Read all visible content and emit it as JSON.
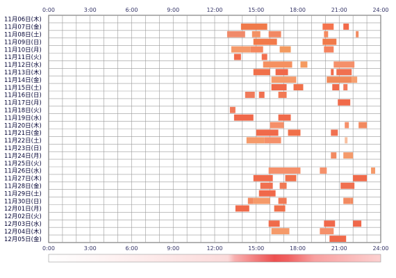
{
  "chart_data": {
    "type": "heatmap",
    "x_ticks": [
      "0:00",
      "3:00",
      "6:00",
      "9:00",
      "12:00",
      "15:00",
      "18:00",
      "21:00",
      "24:00"
    ],
    "xlim": [
      0,
      24
    ],
    "grid": true,
    "rows": [
      {
        "label": "11月06日(木)",
        "segments": []
      },
      {
        "label": "11月07日(金)",
        "segments": [
          [
            13.9,
            15.8,
            "#f07a4a"
          ],
          [
            19.8,
            20.6,
            "#f5744e"
          ],
          [
            21.3,
            21.7,
            "#f26a4a"
          ]
        ]
      },
      {
        "label": "11月08日(土)",
        "segments": [
          [
            12.9,
            14.2,
            "#f08a6a"
          ],
          [
            14.7,
            15.3,
            "#f39265"
          ],
          [
            15.9,
            16.8,
            "#f28863"
          ],
          [
            19.9,
            20.2,
            "#f58a60"
          ],
          [
            22.2,
            22.4,
            "#f28a60"
          ]
        ]
      },
      {
        "label": "11月09日(日)",
        "segments": [
          [
            14.8,
            16.5,
            "#f27a4a"
          ],
          [
            19.8,
            20.8,
            "#f07a4a"
          ]
        ]
      },
      {
        "label": "11月10日(月)",
        "segments": [
          [
            13.2,
            14.6,
            "#f59a6a"
          ],
          [
            14.6,
            15.5,
            "#f5875e"
          ],
          [
            16.7,
            17.5,
            "#f39a5f"
          ],
          [
            19.9,
            20.6,
            "#f5825e"
          ]
        ]
      },
      {
        "label": "11月11日(火)",
        "segments": [
          [
            13.4,
            13.9,
            "#f06a4a"
          ],
          [
            15.4,
            15.8,
            "#f27050"
          ]
        ]
      },
      {
        "label": "11月12日(水)",
        "segments": [
          [
            15.5,
            17.6,
            "#f59060"
          ],
          [
            18.2,
            18.7,
            "#f59a60"
          ],
          [
            20.6,
            22.1,
            "#f5906a"
          ]
        ]
      },
      {
        "label": "11月13日(木)",
        "segments": [
          [
            14.8,
            16.0,
            "#f0704a"
          ],
          [
            16.4,
            17.3,
            "#f0684a"
          ],
          [
            20.4,
            20.6,
            "#f06a4a"
          ],
          [
            20.8,
            21.9,
            "#f07050"
          ]
        ]
      },
      {
        "label": "11月14日(金)",
        "segments": [
          [
            16.1,
            17.9,
            "#f59a6a"
          ],
          [
            20.1,
            21.9,
            "#f08a5a"
          ],
          [
            21.9,
            22.3,
            "#f5a070"
          ]
        ]
      },
      {
        "label": "11月15日(土)",
        "segments": [
          [
            16.1,
            17.2,
            "#f06a4a"
          ],
          [
            17.7,
            18.4,
            "#f0704a"
          ],
          [
            20.5,
            21.0,
            "#f06a4a"
          ],
          [
            21.3,
            21.6,
            "#f27a5a"
          ]
        ]
      },
      {
        "label": "11月16日(日)",
        "segments": [
          [
            14.2,
            14.9,
            "#f07a5a"
          ],
          [
            15.2,
            15.6,
            "#f07050"
          ],
          [
            16.6,
            17.2,
            "#f27a55"
          ]
        ]
      },
      {
        "label": "11月17日(月)",
        "segments": [
          [
            20.9,
            21.8,
            "#f06a4a"
          ]
        ]
      },
      {
        "label": "11月18日(火)",
        "segments": [
          [
            13.1,
            13.5,
            "#f07a5a"
          ]
        ]
      },
      {
        "label": "11月19日(水)",
        "segments": [
          [
            13.4,
            14.8,
            "#f0684a"
          ],
          [
            16.6,
            17.5,
            "#f06a4a"
          ]
        ]
      },
      {
        "label": "11月20日(木)",
        "segments": [
          [
            16.0,
            17.0,
            "#f5906a"
          ],
          [
            21.4,
            21.7,
            "#f5906a"
          ],
          [
            22.4,
            23.0,
            "#f28a60"
          ]
        ]
      },
      {
        "label": "11月21日(金)",
        "segments": [
          [
            15.0,
            16.6,
            "#f06a4a"
          ],
          [
            17.3,
            18.2,
            "#f0704a"
          ],
          [
            20.4,
            20.9,
            "#f07050"
          ]
        ]
      },
      {
        "label": "11月22日(土)",
        "segments": [
          [
            14.3,
            15.6,
            "#f59a6a"
          ],
          [
            15.6,
            16.8,
            "#f5906a"
          ],
          [
            21.4,
            21.6,
            "#f8c0a0"
          ]
        ]
      },
      {
        "label": "11月23日(日)",
        "segments": []
      },
      {
        "label": "11月24日(月)",
        "segments": [
          [
            20.4,
            20.8,
            "#f28a60"
          ],
          [
            21.3,
            22.0,
            "#f59a6a"
          ]
        ]
      },
      {
        "label": "11月25日(火)",
        "segments": []
      },
      {
        "label": "11月26日(水)",
        "segments": [
          [
            15.9,
            18.2,
            "#f5906a"
          ],
          [
            19.6,
            20.1,
            "#f5906a"
          ],
          [
            23.3,
            23.6,
            "#f59a6a"
          ]
        ]
      },
      {
        "label": "11月27日(木)",
        "segments": [
          [
            14.8,
            16.2,
            "#f06a4a"
          ],
          [
            17.1,
            17.9,
            "#f0704a"
          ],
          [
            22.0,
            23.0,
            "#f06a4a"
          ]
        ]
      },
      {
        "label": "11月28日(金)",
        "segments": [
          [
            15.3,
            16.2,
            "#f07050"
          ],
          [
            16.7,
            17.2,
            "#f07a55"
          ],
          [
            21.1,
            22.1,
            "#f07050"
          ]
        ]
      },
      {
        "label": "11月29日(土)",
        "segments": [
          [
            15.2,
            16.4,
            "#f0684a"
          ]
        ]
      },
      {
        "label": "11月30日(日)",
        "segments": [
          [
            14.4,
            14.8,
            "#f28a60"
          ],
          [
            14.8,
            16.0,
            "#f59a6a"
          ],
          [
            16.6,
            17.2,
            "#f07a55"
          ],
          [
            21.3,
            21.8,
            "#f28a60"
          ],
          [
            21.8,
            22.0,
            "#f28a60"
          ]
        ]
      },
      {
        "label": "12月01日(月)",
        "segments": [
          [
            13.5,
            14.5,
            "#f06a4a"
          ],
          [
            16.3,
            17.1,
            "#f0704a"
          ]
        ]
      },
      {
        "label": "12月02日(火)",
        "segments": []
      },
      {
        "label": "12月03日(水)",
        "segments": [
          [
            15.9,
            16.7,
            "#f06a4a"
          ],
          [
            19.9,
            20.7,
            "#f0684a"
          ],
          [
            22.0,
            22.6,
            "#f0684a"
          ]
        ]
      },
      {
        "label": "12月04日(木)",
        "segments": [
          [
            16.1,
            17.4,
            "#f59a6a"
          ],
          [
            19.6,
            20.6,
            "#f5906a"
          ]
        ]
      },
      {
        "label": "12月05日(金)",
        "segments": [
          [
            20.3,
            21.5,
            "#f06a4a"
          ]
        ]
      }
    ],
    "summary_bar": {
      "colors": [
        "#ffffff",
        "#fbdada",
        "#f8b0b0",
        "#f59090",
        "#f07070",
        "#ee5050",
        "#f06060",
        "#f8a0a0",
        "#fcd0d0"
      ]
    }
  }
}
